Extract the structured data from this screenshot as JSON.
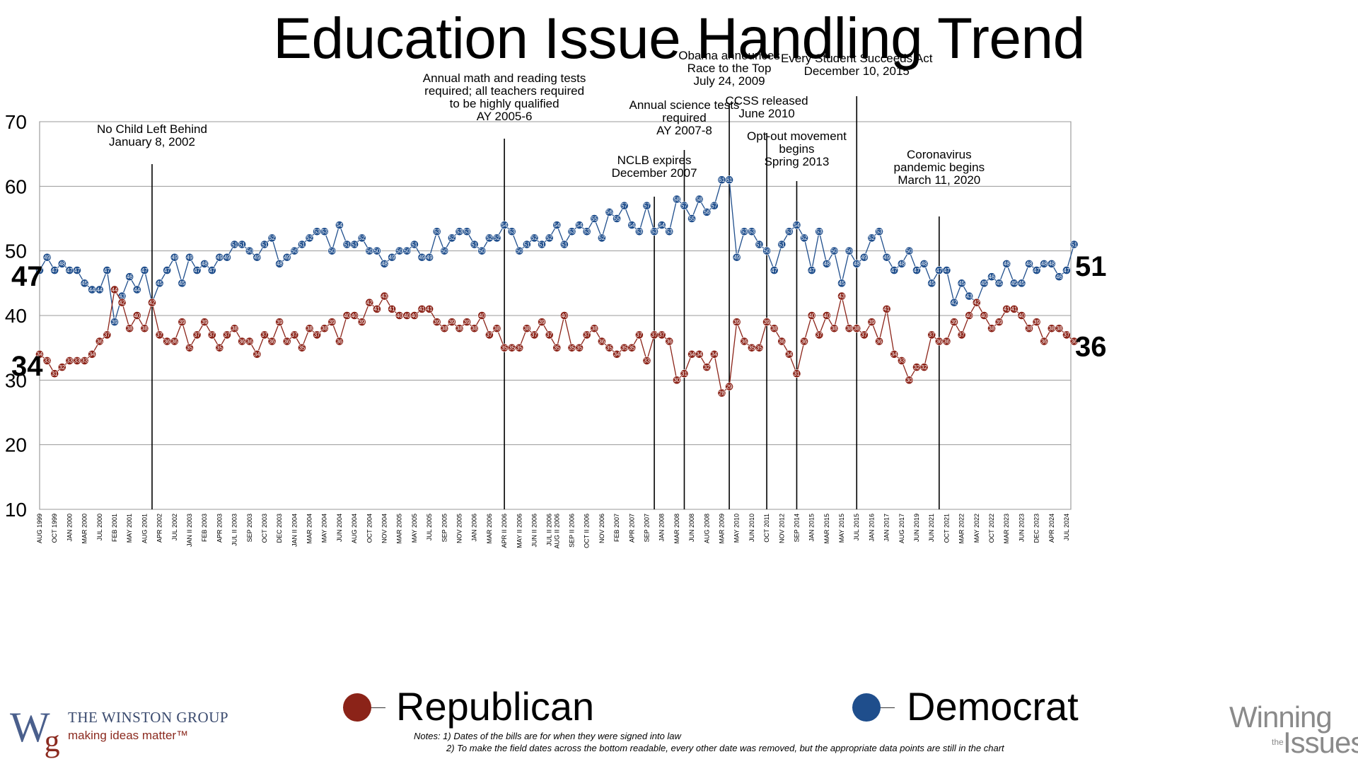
{
  "title": "Education Issue Handling Trend",
  "chart_data": {
    "type": "line",
    "title": "Education Issue Handling Trend",
    "ylim": [
      10,
      70
    ],
    "yticks": [
      10,
      20,
      30,
      40,
      50,
      60,
      70
    ],
    "grid": "horizontal",
    "legend_placement": "bottom",
    "point_count": 138,
    "x_tick_labels": [
      "AUG 1999",
      "OCT 1999",
      "JAN 2000",
      "MAR 2000",
      "JUL 2000",
      "FEB 2001",
      "MAY 2001",
      "AUG 2001",
      "APR 2002",
      "JUL 2002",
      "JAN II 2003",
      "FEB 2003",
      "APR 2003",
      "JUL II 2003",
      "SEP 2003",
      "OCT 2003",
      "DEC 2003",
      "JAN II 2004",
      "MAR 2004",
      "MAY 2004",
      "JUN 2004",
      "AUG 2004",
      "OCT 2004",
      "NOV 2004",
      "MAR 2005",
      "MAY 2005",
      "JUL 2005",
      "SEP 2005",
      "NOV 2005",
      "JAN 2006",
      "MAR 2006",
      "APR II 2006",
      "MAY II 2006",
      "JUN II 2006",
      "JUL II 2006",
      "AUG II 2006",
      "SEP II 2006",
      "OCT II 2006",
      "NOV 2006",
      "FEB 2007",
      "APR 2007",
      "SEP 2007",
      "JAN 2008",
      "MAR 2008",
      "JUN 2008",
      "AUG 2008",
      "MAR 2009",
      "MAY 2010",
      "JUN 2010",
      "OCT 2011",
      "NOV 2012",
      "SEP 2014",
      "JAN 2015",
      "MAR 2015",
      "MAY 2015",
      "JUL 2015",
      "JAN 2016",
      "JAN 2017",
      "AUG 2017",
      "JUN 2019",
      "JUN 2021",
      "OCT 2021",
      "MAR 2022",
      "MAY 2022",
      "OCT 2022",
      "MAR 2023",
      "JUN 2023",
      "DEC 2023",
      "APR 2024",
      "JUL 2024"
    ],
    "series": [
      {
        "name": "Democrat",
        "color": "#1f4e8c",
        "values": [
          47,
          49,
          47,
          48,
          47,
          47,
          45,
          44,
          44,
          47,
          39,
          43,
          46,
          44,
          47,
          42,
          45,
          47,
          49,
          45,
          49,
          47,
          48,
          47,
          49,
          49,
          51,
          51,
          50,
          49,
          51,
          52,
          48,
          49,
          50,
          51,
          52,
          53,
          53,
          50,
          54,
          51,
          51,
          52,
          50,
          50,
          48,
          49,
          50,
          50,
          51,
          49,
          49,
          53,
          50,
          52,
          53,
          53,
          51,
          50,
          52,
          52,
          54,
          53,
          50,
          51,
          52,
          51,
          52,
          54,
          51,
          53,
          54,
          53,
          55,
          52,
          56,
          55,
          57,
          54,
          53,
          57,
          53,
          54,
          53,
          58,
          57,
          55,
          58,
          56,
          57,
          61,
          61,
          49,
          53,
          53,
          51,
          50,
          47,
          51,
          53,
          54,
          52,
          47,
          53,
          48,
          50,
          45,
          50,
          48,
          49,
          52,
          53,
          49,
          47,
          48,
          50,
          47,
          48,
          45,
          47,
          47,
          42,
          45,
          43,
          42,
          45,
          46,
          45,
          48,
          45,
          45,
          48,
          47,
          48,
          48,
          46,
          47,
          51
        ]
      },
      {
        "name": "Republican",
        "color": "#8b2318",
        "values": [
          34,
          33,
          31,
          32,
          33,
          33,
          33,
          34,
          36,
          37,
          44,
          42,
          38,
          40,
          38,
          42,
          37,
          36,
          36,
          39,
          35,
          37,
          39,
          37,
          35,
          37,
          38,
          36,
          36,
          34,
          37,
          36,
          39,
          36,
          37,
          35,
          38,
          37,
          38,
          39,
          36,
          40,
          40,
          39,
          42,
          41,
          43,
          41,
          40,
          40,
          40,
          41,
          41,
          39,
          38,
          39,
          38,
          39,
          38,
          40,
          37,
          38,
          35,
          35,
          35,
          38,
          37,
          39,
          37,
          35,
          40,
          35,
          35,
          37,
          38,
          36,
          35,
          34,
          35,
          35,
          37,
          33,
          37,
          37,
          36,
          30,
          31,
          34,
          34,
          32,
          34,
          28,
          29,
          39,
          36,
          35,
          35,
          39,
          38,
          36,
          34,
          31,
          36,
          40,
          37,
          40,
          38,
          43,
          38,
          38,
          37,
          39,
          36,
          41,
          34,
          33,
          30,
          32,
          32,
          37,
          36,
          36,
          39,
          37,
          40,
          42,
          40,
          38,
          39,
          41,
          41,
          40,
          38,
          39,
          36,
          38,
          38,
          37,
          36
        ]
      }
    ],
    "end_labels": {
      "democrat_start": "47",
      "republican_start": "34",
      "democrat_end": "51",
      "republican_end": "36"
    },
    "annotations": [
      {
        "lines": [
          "No Child Left Behind",
          "January 8, 2002"
        ],
        "index": 15
      },
      {
        "lines": [
          "Annual math and reading tests",
          "required; all teachers required",
          "to be highly qualified",
          "AY 2005-6"
        ],
        "index": 62
      },
      {
        "lines": [
          "NCLB expires",
          "December 2007"
        ],
        "index": 82
      },
      {
        "lines": [
          "Annual science tests",
          "required",
          "AY 2007-8"
        ],
        "index": 86
      },
      {
        "lines": [
          "Obama announces",
          "Race to the Top",
          "July 24, 2009"
        ],
        "index": 92
      },
      {
        "lines": [
          "CCSS released",
          "June 2010"
        ],
        "index": 97
      },
      {
        "lines": [
          "Opt-out movement",
          "begins",
          "Spring 2013"
        ],
        "index": 101
      },
      {
        "lines": [
          "Every Student Succeeds Act",
          "December 10, 2015"
        ],
        "index": 109
      },
      {
        "lines": [
          "Coronavirus",
          "pandemic begins",
          "March 11, 2020"
        ],
        "index": 120
      }
    ]
  },
  "legend": {
    "republican_label": "Republican",
    "democrat_label": "Democrat",
    "republican_color": "#8b2318",
    "democrat_color": "#1f4e8c"
  },
  "logo_left": {
    "mark": "Wg",
    "name": "THE WINSTON GROUP",
    "tagline": "making ideas matter™"
  },
  "logo_right": {
    "line1": "Winning",
    "the": "the",
    "line2": "Issues"
  },
  "notes": {
    "line1": "Notes: 1) Dates of the bills are for when they were signed into law",
    "line2": "2) To make the field dates across the bottom readable, every other date was removed, but the appropriate data points are still in the chart"
  }
}
